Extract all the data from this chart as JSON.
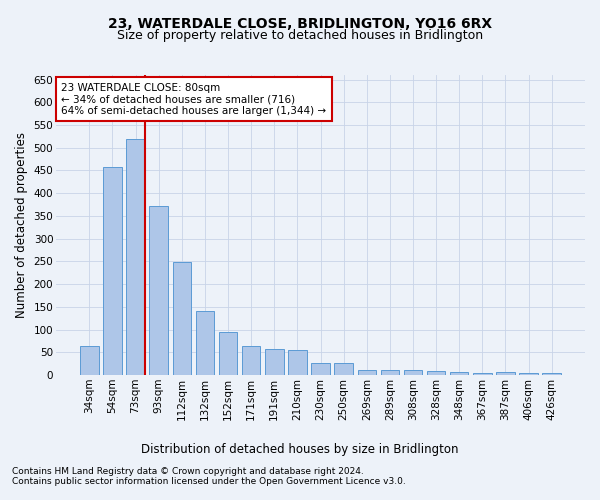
{
  "title": "23, WATERDALE CLOSE, BRIDLINGTON, YO16 6RX",
  "subtitle": "Size of property relative to detached houses in Bridlington",
  "xlabel_bottom": "Distribution of detached houses by size in Bridlington",
  "ylabel": "Number of detached properties",
  "footer1": "Contains HM Land Registry data © Crown copyright and database right 2024.",
  "footer2": "Contains public sector information licensed under the Open Government Licence v3.0.",
  "categories": [
    "34sqm",
    "54sqm",
    "73sqm",
    "93sqm",
    "112sqm",
    "132sqm",
    "152sqm",
    "171sqm",
    "191sqm",
    "210sqm",
    "230sqm",
    "250sqm",
    "269sqm",
    "289sqm",
    "308sqm",
    "328sqm",
    "348sqm",
    "367sqm",
    "387sqm",
    "406sqm",
    "426sqm"
  ],
  "values": [
    63,
    458,
    520,
    372,
    249,
    141,
    94,
    63,
    58,
    56,
    27,
    27,
    12,
    12,
    12,
    9,
    7,
    5,
    7,
    5,
    5
  ],
  "bar_color": "#aec6e8",
  "bar_edge_color": "#5b9bd5",
  "bar_width": 0.8,
  "vline_x_index": 2,
  "vline_color": "#cc0000",
  "annotation_text": "23 WATERDALE CLOSE: 80sqm\n← 34% of detached houses are smaller (716)\n64% of semi-detached houses are larger (1,344) →",
  "annotation_box_color": "#ffffff",
  "annotation_box_edge": "#cc0000",
  "ylim": [
    0,
    660
  ],
  "yticks": [
    0,
    50,
    100,
    150,
    200,
    250,
    300,
    350,
    400,
    450,
    500,
    550,
    600,
    650
  ],
  "grid_color": "#c8d4e8",
  "bg_color": "#edf2f9",
  "plot_bg_color": "#edf2f9",
  "title_fontsize": 10,
  "subtitle_fontsize": 9,
  "tick_fontsize": 7.5,
  "ylabel_fontsize": 8.5,
  "xlabel_bottom_fontsize": 8.5,
  "annotation_fontsize": 7.5,
  "footer_fontsize": 6.5
}
